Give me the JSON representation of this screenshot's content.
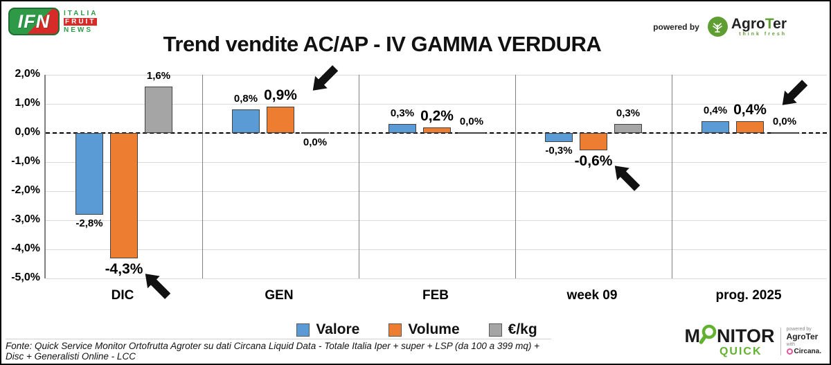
{
  "header": {
    "ifn_logo": {
      "abbr": "IFN",
      "line1": "ITALIA",
      "line2": "FRUIT",
      "line3": "NEWS"
    },
    "title": "Trend vendite AC/AP - IV GAMMA VERDURA",
    "powered_by": "powered by",
    "agroter": {
      "pre": "Agro",
      "mid": "T",
      "post": "er",
      "tagline": "think fresh"
    }
  },
  "chart_data": {
    "type": "bar",
    "title": "Trend vendite AC/AP - IV GAMMA VERDURA",
    "categories": [
      "DIC",
      "GEN",
      "FEB",
      "week 09",
      "prog. 2025"
    ],
    "series": [
      {
        "name": "Valore",
        "color": "#5B9BD5",
        "values": [
          -2.8,
          0.8,
          0.3,
          -0.3,
          0.4
        ],
        "labels": [
          "-2,8%",
          "0,8%",
          "0,3%",
          "-0,3%",
          "0,4%"
        ],
        "label_pos": [
          "below",
          "above",
          "above",
          "below",
          "above"
        ],
        "label_size": [
          "normal",
          "normal",
          "normal",
          "normal",
          "normal"
        ]
      },
      {
        "name": "Volume",
        "color": "#ED7D31",
        "values": [
          -4.3,
          0.9,
          0.2,
          -0.6,
          0.4
        ],
        "labels": [
          "-4,3%",
          "0,9%",
          "0,2%",
          "-0,6%",
          "0,4%"
        ],
        "label_pos": [
          "below",
          "above",
          "above",
          "below",
          "above"
        ],
        "label_size": [
          "large",
          "large",
          "large",
          "large",
          "large"
        ]
      },
      {
        "name": "€/kg",
        "color": "#A5A5A5",
        "values": [
          1.6,
          0.0,
          0.0,
          0.3,
          0.0
        ],
        "labels": [
          "1,6%",
          "0,0%",
          "0,0%",
          "0,3%",
          "0,0%"
        ],
        "label_pos": [
          "above",
          "below",
          "above",
          "above",
          "above"
        ],
        "label_size": [
          "normal",
          "normal",
          "normal",
          "normal",
          "normal"
        ]
      }
    ],
    "y_ticks": [
      {
        "v": 2,
        "label": "2,0%"
      },
      {
        "v": 1,
        "label": "1,0%"
      },
      {
        "v": 0,
        "label": "0,0%"
      },
      {
        "v": -1,
        "label": "-1,0%"
      },
      {
        "v": -2,
        "label": "-2,0%"
      },
      {
        "v": -3,
        "label": "-3,0%"
      },
      {
        "v": -4,
        "label": "-4,0%"
      },
      {
        "v": -5,
        "label": "-5,0%"
      }
    ],
    "ylim": [
      -5,
      2
    ],
    "unit": "%",
    "grid": true,
    "zero_line": "dashed",
    "legend_position": "bottom",
    "arrows": [
      {
        "category": "DIC",
        "series": "Volume",
        "direction": "up-left"
      },
      {
        "category": "GEN",
        "series": "Volume",
        "direction": "down-left"
      },
      {
        "category": "week 09",
        "series": "Volume",
        "direction": "up-left"
      },
      {
        "category": "prog. 2025",
        "series": "Volume",
        "direction": "down-left"
      }
    ]
  },
  "legend": {
    "items": [
      {
        "label": "Valore",
        "color": "#5B9BD5"
      },
      {
        "label": "Volume",
        "color": "#ED7D31"
      },
      {
        "label": "€/kg",
        "color": "#A5A5A5"
      }
    ]
  },
  "footer": {
    "source": "Fonte: Quick Service Monitor Ortofrutta Agroter su dati Circana Liquid Data - Totale Italia Iper + super + LSP (da 100 a 399 mq) + Disc + Generalisti Online - LCC",
    "monitor_logo": {
      "m": "M",
      "nitor": "NITOR",
      "quick": "QUICK",
      "powered_by": "powered by",
      "agroter": "AgroTer",
      "with": "with",
      "circana": "Circana."
    }
  }
}
